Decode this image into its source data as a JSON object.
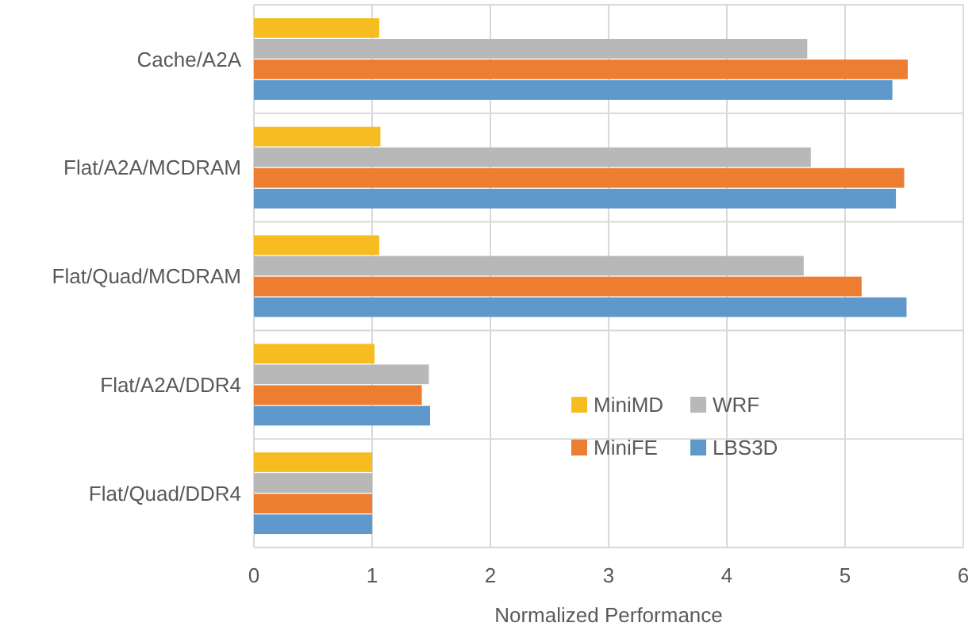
{
  "chart_data": {
    "type": "bar",
    "orientation": "horizontal",
    "xlabel": "Normalized Performance",
    "categories": [
      "Cache/A2A",
      "Flat/A2A/MCDRAM",
      "Flat/Quad/MCDRAM",
      "Flat/A2A/DDR4",
      "Flat/Quad/DDR4"
    ],
    "series": [
      {
        "name": "MiniMD",
        "color": "#f7bc20",
        "values": [
          1.06,
          1.07,
          1.06,
          1.02,
          1.0
        ]
      },
      {
        "name": "WRF",
        "color": "#b7b8b7",
        "values": [
          4.68,
          4.71,
          4.65,
          1.48,
          1.0
        ]
      },
      {
        "name": "MiniFE",
        "color": "#ed7d31",
        "values": [
          5.53,
          5.5,
          5.14,
          1.42,
          1.0
        ]
      },
      {
        "name": "LBS3D",
        "color": "#5f98cb",
        "values": [
          5.4,
          5.43,
          5.52,
          1.49,
          1.0
        ]
      }
    ],
    "xlim": [
      0,
      6
    ],
    "xticks": [
      0,
      1,
      2,
      3,
      4,
      5,
      6
    ],
    "grid": true,
    "legend": "right"
  }
}
